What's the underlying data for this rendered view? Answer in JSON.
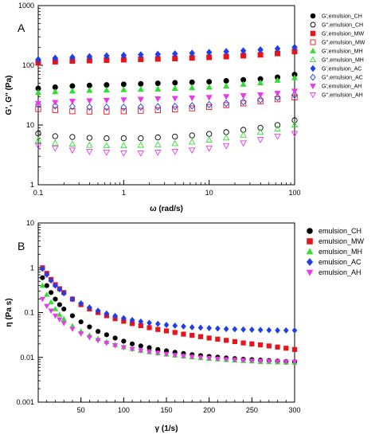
{
  "chart_data": [
    {
      "panel_label": "A",
      "type": "scatter",
      "xlabel": "ω (rad/s)",
      "ylabel": "G', G'' (Pa)",
      "xscale": "log",
      "yscale": "log",
      "xlim": [
        0.1,
        100
      ],
      "ylim": [
        1,
        1000
      ],
      "x_ticks": [
        {
          "v": 0.1,
          "label": "0.1"
        },
        {
          "v": 1,
          "label": "1"
        },
        {
          "v": 10,
          "label": "10"
        },
        {
          "v": 100,
          "label": "100"
        }
      ],
      "y_ticks": [
        {
          "v": 1,
          "label": "1"
        },
        {
          "v": 10,
          "label": "10"
        },
        {
          "v": 100,
          "label": "100"
        },
        {
          "v": 1000,
          "label": "1000"
        }
      ],
      "grid": false,
      "legend_position": "top-right",
      "x": [
        0.1,
        0.158,
        0.251,
        0.398,
        0.631,
        1.0,
        1.585,
        2.512,
        3.981,
        6.31,
        10.0,
        15.85,
        25.12,
        39.81,
        63.1,
        100.0
      ],
      "series": [
        {
          "name": "G',emulsion_CH",
          "marker": "circle",
          "filled": true,
          "color": "#000000",
          "values": [
            41,
            43,
            45,
            46,
            47,
            48,
            49,
            50,
            51,
            52,
            53,
            55,
            57,
            59,
            63,
            70
          ]
        },
        {
          "name": "G'',emulsion_CH",
          "marker": "circle",
          "filled": false,
          "color": "#000000",
          "values": [
            7.2,
            6.5,
            6.3,
            6.1,
            6.0,
            6.0,
            6.0,
            6.2,
            6.4,
            6.7,
            7.1,
            7.6,
            8.3,
            9.0,
            10.0,
            12.0
          ]
        },
        {
          "name": "G',emulsion_MW",
          "marker": "square",
          "filled": true,
          "color": "#e8141c",
          "values": [
            110,
            115,
            118,
            120,
            122,
            124,
            126,
            128,
            130,
            133,
            136,
            140,
            145,
            150,
            158,
            170
          ]
        },
        {
          "name": "G'',emulsion_MW",
          "marker": "square",
          "filled": false,
          "color": "#e8141c",
          "values": [
            18.5,
            17.8,
            17.0,
            16.8,
            16.8,
            17.0,
            17.3,
            17.7,
            18.3,
            19.0,
            20.0,
            21.5,
            23.0,
            25.0,
            27.0,
            29.0
          ]
        },
        {
          "name": "G',emulsion_MH",
          "marker": "triangle",
          "filled": true,
          "color": "#33dd33",
          "values": [
            35,
            36,
            37,
            38,
            38.5,
            39,
            39.5,
            40,
            41,
            42,
            43,
            45,
            48,
            51,
            56,
            62
          ]
        },
        {
          "name": "G'',emulsion_MH",
          "marker": "triangle",
          "filled": false,
          "color": "#33dd33",
          "values": [
            5.5,
            5.0,
            4.8,
            4.6,
            4.5,
            4.5,
            4.6,
            4.7,
            4.9,
            5.2,
            5.6,
            6.1,
            6.8,
            7.6,
            8.6,
            10.0
          ]
        },
        {
          "name": "G',emulsion_AC",
          "marker": "diamond",
          "filled": true,
          "color": "#1f3fe8",
          "values": [
            125,
            132,
            136,
            140,
            144,
            147,
            150,
            153,
            156,
            160,
            165,
            170,
            175,
            182,
            190,
            200
          ]
        },
        {
          "name": "G'',emulsion_AC",
          "marker": "diamond",
          "filled": false,
          "color": "#1f3fe8",
          "values": [
            22,
            21,
            20.5,
            20,
            19.8,
            19.8,
            20,
            20.2,
            20.5,
            21,
            22,
            23,
            24.5,
            26.5,
            29,
            32
          ]
        },
        {
          "name": "G',emulsion_AH",
          "marker": "tri-down",
          "filled": true,
          "color": "#e83ae8",
          "values": [
            23,
            24,
            25,
            25.5,
            26,
            26.5,
            27,
            27.5,
            28,
            28.5,
            29,
            30,
            31,
            32,
            34,
            37
          ]
        },
        {
          "name": "G'',emulsion_AH",
          "marker": "tri-down",
          "filled": false,
          "color": "#e83ae8",
          "values": [
            4.5,
            4.1,
            3.8,
            3.6,
            3.5,
            3.4,
            3.4,
            3.5,
            3.6,
            3.8,
            4.1,
            4.5,
            5.0,
            5.7,
            6.5,
            7.2
          ]
        }
      ]
    },
    {
      "panel_label": "B",
      "type": "scatter",
      "xlabel": "γ (1/s)",
      "ylabel": "η (Pa s)",
      "xscale": "linear",
      "yscale": "log",
      "xlim": [
        0,
        300
      ],
      "ylim": [
        0.001,
        10
      ],
      "x_ticks": [
        {
          "v": 50,
          "label": "50"
        },
        {
          "v": 100,
          "label": "100"
        },
        {
          "v": 150,
          "label": "150"
        },
        {
          "v": 200,
          "label": "200"
        },
        {
          "v": 250,
          "label": "250"
        },
        {
          "v": 300,
          "label": "300"
        }
      ],
      "y_ticks": [
        {
          "v": 0.001,
          "label": "0.001"
        },
        {
          "v": 0.01,
          "label": "0.01"
        },
        {
          "v": 0.1,
          "label": "0.1"
        },
        {
          "v": 1,
          "label": "1"
        },
        {
          "v": 10,
          "label": "10"
        }
      ],
      "grid": false,
      "legend_position": "top-right",
      "x": [
        5,
        10,
        15,
        20,
        25,
        30,
        40,
        50,
        60,
        70,
        80,
        90,
        100,
        110,
        120,
        130,
        140,
        150,
        160,
        170,
        180,
        190,
        200,
        210,
        220,
        230,
        240,
        250,
        260,
        270,
        280,
        290,
        300
      ],
      "series": [
        {
          "name": "emulsion_CH",
          "marker": "circle",
          "filled": true,
          "color": "#000000",
          "values": [
            0.6,
            0.4,
            0.28,
            0.2,
            0.15,
            0.12,
            0.085,
            0.062,
            0.048,
            0.038,
            0.032,
            0.027,
            0.023,
            0.02,
            0.018,
            0.0165,
            0.015,
            0.014,
            0.013,
            0.0122,
            0.0115,
            0.011,
            0.0105,
            0.0101,
            0.0097,
            0.0094,
            0.0091,
            0.0089,
            0.0087,
            0.0085,
            0.0083,
            0.0081,
            0.008
          ]
        },
        {
          "name": "emulsion_MW",
          "marker": "square",
          "filled": true,
          "color": "#e8141c",
          "values": [
            1.0,
            0.75,
            0.55,
            0.42,
            0.34,
            0.28,
            0.2,
            0.15,
            0.12,
            0.1,
            0.085,
            0.073,
            0.064,
            0.057,
            0.051,
            0.046,
            0.042,
            0.039,
            0.036,
            0.033,
            0.031,
            0.029,
            0.027,
            0.0255,
            0.024,
            0.0225,
            0.021,
            0.02,
            0.019,
            0.018,
            0.017,
            0.016,
            0.015
          ]
        },
        {
          "name": "emulsion_MH",
          "marker": "triangle",
          "filled": true,
          "color": "#33dd33",
          "values": [
            0.4,
            0.25,
            0.17,
            0.12,
            0.09,
            0.072,
            0.05,
            0.038,
            0.031,
            0.026,
            0.022,
            0.019,
            0.017,
            0.0155,
            0.0142,
            0.0132,
            0.0124,
            0.0117,
            0.0111,
            0.0106,
            0.0101,
            0.0097,
            0.0094,
            0.0091,
            0.0088,
            0.0086,
            0.0084,
            0.0082,
            0.008,
            0.0079,
            0.0078,
            0.0077,
            0.0076
          ]
        },
        {
          "name": "emulsion_AC",
          "marker": "diamond",
          "filled": true,
          "color": "#1f3fe8",
          "values": [
            0.95,
            0.7,
            0.52,
            0.4,
            0.33,
            0.27,
            0.2,
            0.16,
            0.13,
            0.11,
            0.095,
            0.084,
            0.075,
            0.068,
            0.063,
            0.059,
            0.056,
            0.053,
            0.051,
            0.049,
            0.047,
            0.046,
            0.045,
            0.044,
            0.043,
            0.0425,
            0.042,
            0.0415,
            0.041,
            0.0405,
            0.04,
            0.04,
            0.04
          ]
        },
        {
          "name": "emulsion_AH",
          "marker": "tri-down",
          "filled": true,
          "color": "#e83ae8",
          "values": [
            0.2,
            0.14,
            0.11,
            0.085,
            0.07,
            0.058,
            0.043,
            0.034,
            0.028,
            0.024,
            0.021,
            0.0185,
            0.0167,
            0.0153,
            0.0142,
            0.0133,
            0.0125,
            0.0118,
            0.0112,
            0.0107,
            0.0103,
            0.0099,
            0.0096,
            0.0093,
            0.009,
            0.0088,
            0.0086,
            0.0084,
            0.0083,
            0.0082,
            0.0081,
            0.008,
            0.008
          ]
        }
      ]
    }
  ]
}
